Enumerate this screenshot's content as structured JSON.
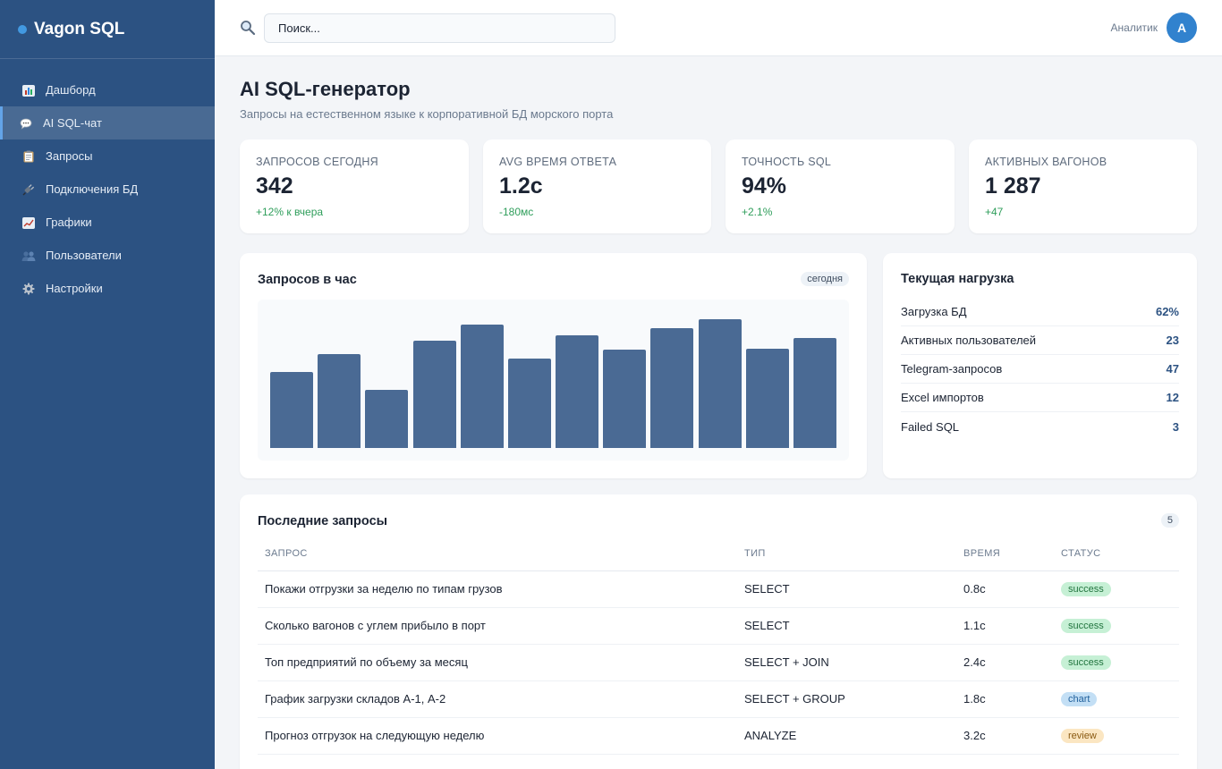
{
  "app": {
    "name": "Vagon SQL"
  },
  "sidebar": {
    "items": [
      {
        "label": "Дашборд",
        "icon": "bar-chart-icon",
        "active": false
      },
      {
        "label": "AI SQL-чат",
        "icon": "chat-icon",
        "active": true
      },
      {
        "label": "Запросы",
        "icon": "clipboard-icon",
        "active": false
      },
      {
        "label": "Подключения БД",
        "icon": "plug-icon",
        "active": false
      },
      {
        "label": "Графики",
        "icon": "line-chart-icon",
        "active": false
      },
      {
        "label": "Пользователи",
        "icon": "users-icon",
        "active": false
      },
      {
        "label": "Настройки",
        "icon": "gear-icon",
        "active": false
      }
    ]
  },
  "topbar": {
    "search_placeholder": "Поиск...",
    "user_role": "Аналитик",
    "avatar_letter": "А"
  },
  "page": {
    "title": "AI SQL-генератор",
    "subtitle": "Запросы на естественном языке к корпоративной БД морского порта"
  },
  "stats": [
    {
      "label": "ЗАПРОСОВ СЕГОДНЯ",
      "value": "342",
      "delta": "+12% к вчера"
    },
    {
      "label": "AVG ВРЕМЯ ОТВЕТА",
      "value": "1.2с",
      "delta": "-180мс"
    },
    {
      "label": "ТОЧНОСТЬ SQL",
      "value": "94%",
      "delta": "+2.1%"
    },
    {
      "label": "АКТИВНЫХ ВАГОНОВ",
      "value": "1 287",
      "delta": "+47"
    }
  ],
  "chart_card": {
    "title": "Запросов в час",
    "badge": "сегодня"
  },
  "chart_data": {
    "type": "bar",
    "values": [
      0.51,
      0.63,
      0.39,
      0.72,
      0.83,
      0.6,
      0.76,
      0.66,
      0.81,
      0.87,
      0.67,
      0.74
    ],
    "title": "Запросов в час",
    "grid": false
  },
  "load_card": {
    "title": "Текущая нагрузка",
    "rows": [
      {
        "label": "Загрузка БД",
        "value": "62%"
      },
      {
        "label": "Активных пользователей",
        "value": "23"
      },
      {
        "label": "Telegram-запросов",
        "value": "47"
      },
      {
        "label": "Excel импортов",
        "value": "12"
      },
      {
        "label": "Failed SQL",
        "value": "3"
      }
    ]
  },
  "recent": {
    "title": "Последние запросы",
    "count": "5",
    "columns": [
      "ЗАПРОС",
      "ТИП",
      "ВРЕМЯ",
      "СТАТУС"
    ],
    "rows": [
      {
        "query": "Покажи отгрузки за неделю по типам грузов",
        "type": "SELECT",
        "time": "0.8с",
        "status": "success"
      },
      {
        "query": "Сколько вагонов с углем прибыло в порт",
        "type": "SELECT",
        "time": "1.1с",
        "status": "success"
      },
      {
        "query": "Топ предприятий по объему за месяц",
        "type": "SELECT + JOIN",
        "time": "2.4с",
        "status": "success"
      },
      {
        "query": "График загрузки складов А-1, А-2",
        "type": "SELECT + GROUP",
        "time": "1.8с",
        "status": "chart"
      },
      {
        "query": "Прогноз отгрузок на следующую неделю",
        "type": "ANALYZE",
        "time": "3.2с",
        "status": "review"
      }
    ]
  },
  "colors": {
    "sidebar": "#2c5282",
    "accent": "#3182ce",
    "bar": "#4a6a94",
    "positive": "#2f9e5b"
  }
}
